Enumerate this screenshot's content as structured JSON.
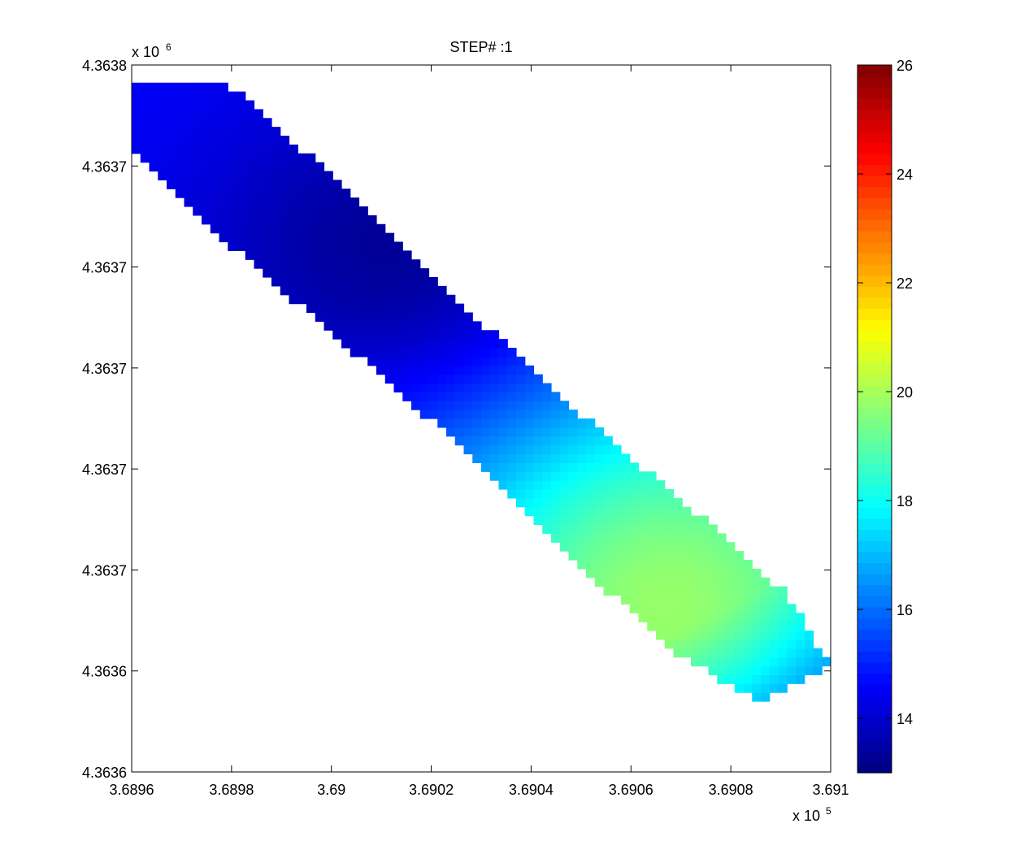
{
  "chart_data": {
    "type": "heatmap",
    "title": "STEP# :1",
    "xlim": [
      368960,
      369100
    ],
    "ylim": [
      4363600,
      4363800
    ],
    "x_ticks": [
      "3.6896",
      "3.6898",
      "3.69",
      "3.6902",
      "3.6904",
      "3.6906",
      "3.6908",
      "3.691"
    ],
    "y_ticks": [
      "4.3638",
      "4.3637",
      "4.3637",
      "4.3637",
      "4.3637",
      "4.3637",
      "4.3636",
      "4.3636"
    ],
    "x_exponent": {
      "base": "x 10",
      "exp": "5"
    },
    "y_exponent": {
      "base": "x 10",
      "exp": "6"
    },
    "colorbar": {
      "colormap": "jet",
      "range": [
        13,
        26
      ],
      "ticks": [
        "14",
        "16",
        "18",
        "20",
        "22",
        "24",
        "26"
      ]
    },
    "field": {
      "description_units": "temperature-like scalar",
      "low_center": {
        "x": 369011,
        "y": 4363749,
        "value": 13.3
      },
      "high_center": {
        "x": 369067,
        "y": 4363647,
        "value": 19.8
      },
      "edge_value": 15.4,
      "band_axis": {
        "x_start": 368962,
        "y_start": 4363795,
        "x_end": 369093,
        "y_end": 4363625
      }
    },
    "grid": false
  }
}
